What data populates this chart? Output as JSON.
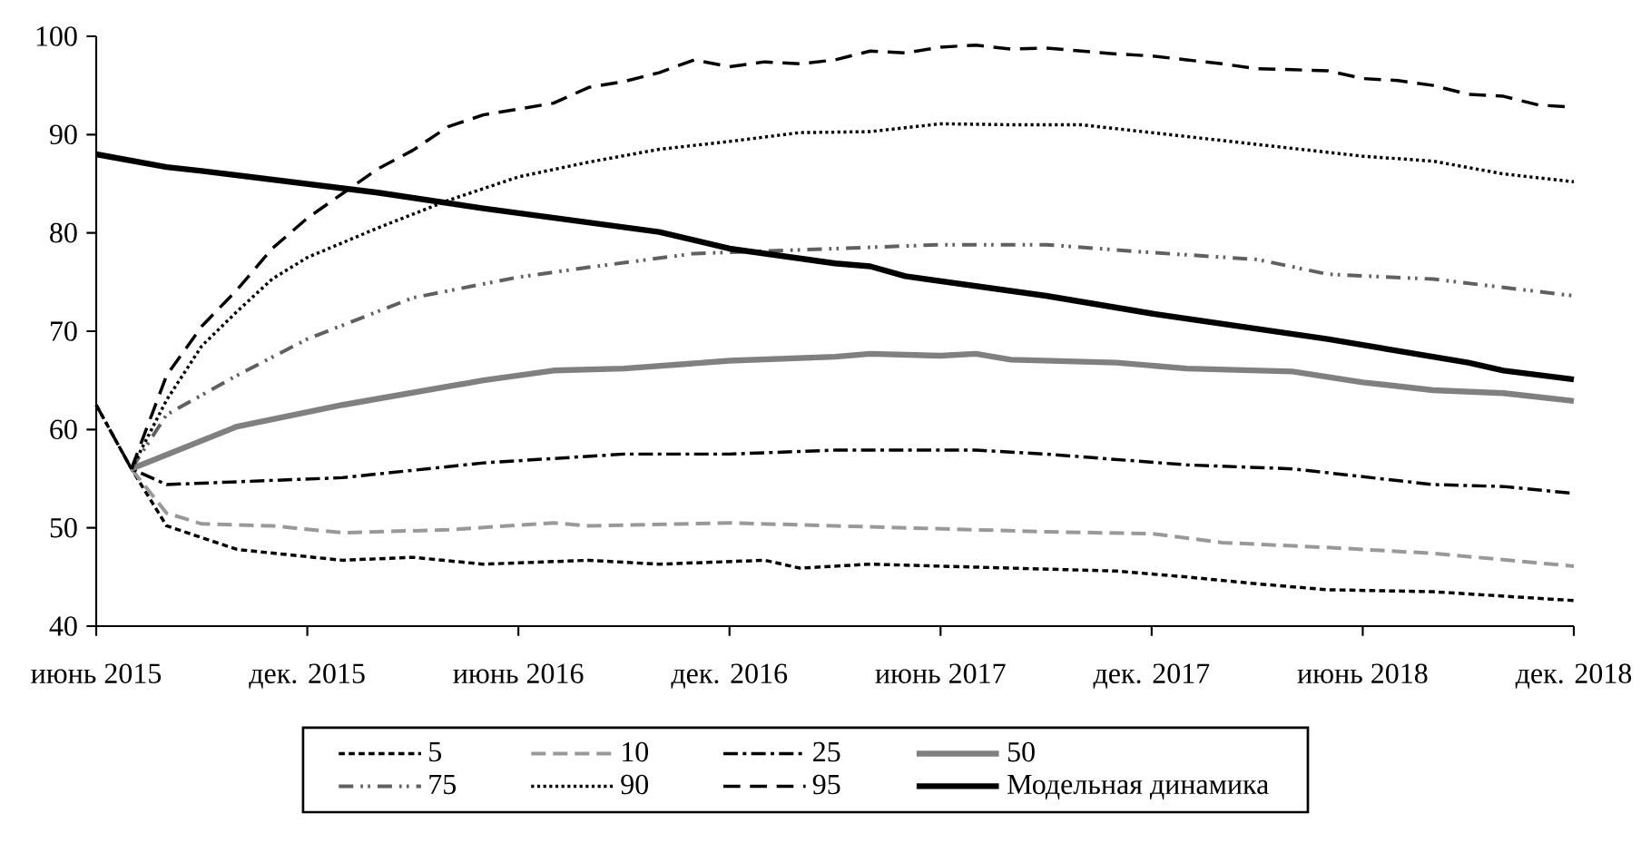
{
  "chart_data": {
    "type": "line",
    "xlim": [
      "2015-06",
      "2018-12"
    ],
    "xticks": [
      {
        "value": "2015-06",
        "label": "июнь 2015"
      },
      {
        "value": "2015-12",
        "label": "дек. 2015"
      },
      {
        "value": "2016-06",
        "label": "июнь 2016"
      },
      {
        "value": "2016-12",
        "label": "дек. 2016"
      },
      {
        "value": "2017-06",
        "label": "июнь 2017"
      },
      {
        "value": "2017-12",
        "label": "дек. 2017"
      },
      {
        "value": "2018-06",
        "label": "июнь 2018"
      },
      {
        "value": "2018-12",
        "label": "дек. 2018"
      }
    ],
    "ylim": [
      40,
      100
    ],
    "yticks": [
      40,
      50,
      60,
      70,
      80,
      90,
      100
    ],
    "grid": false,
    "legend": "bottom",
    "series": [
      {
        "name": "5",
        "color": "#000000",
        "line_style": "densely dashed",
        "x": [
          "2015-06",
          "2015-07",
          "2015-08",
          "2015-10",
          "2016-01",
          "2016-03",
          "2016-05",
          "2016-08",
          "2016-10",
          "2017-01",
          "2017-02",
          "2017-04",
          "2017-08",
          "2017-11",
          "2018-01",
          "2018-03",
          "2018-05",
          "2018-08",
          "2018-12"
        ],
        "values": [
          62.5,
          56,
          50.2,
          47.8,
          46.7,
          47,
          46.3,
          46.7,
          46.3,
          46.7,
          45.9,
          46.3,
          45.9,
          45.6,
          45,
          44.3,
          43.7,
          43.5,
          42.6
        ]
      },
      {
        "name": "10",
        "color": "#999999",
        "line_style": "dashed",
        "x": [
          "2015-07",
          "2015-08",
          "2015-09",
          "2015-11",
          "2016-01",
          "2016-04",
          "2016-07",
          "2016-08",
          "2016-12",
          "2017-03",
          "2017-05",
          "2017-09",
          "2017-12",
          "2018-02",
          "2018-05",
          "2018-08",
          "2018-12"
        ],
        "values": [
          56,
          51.5,
          50.4,
          50.2,
          49.5,
          49.8,
          50.5,
          50.2,
          50.5,
          50.2,
          50,
          49.6,
          49.4,
          48.5,
          48,
          47.4,
          46.1
        ]
      },
      {
        "name": "25",
        "color": "#000000",
        "line_style": "dashdot",
        "x": [
          "2015-06",
          "2015-07",
          "2015-08",
          "2016-01",
          "2016-05",
          "2016-09",
          "2016-12",
          "2017-03",
          "2017-07",
          "2017-09",
          "2018-01",
          "2018-04",
          "2018-08",
          "2018-10",
          "2018-12"
        ],
        "values": [
          62.5,
          56,
          54.4,
          55.1,
          56.6,
          57.5,
          57.5,
          57.9,
          57.9,
          57.5,
          56.4,
          56,
          54.4,
          54.2,
          53.5
        ]
      },
      {
        "name": "50",
        "color": "#808080",
        "line_style": "solid",
        "x": [
          "2015-07",
          "2015-10",
          "2016-01",
          "2016-05",
          "2016-07",
          "2016-09",
          "2016-12",
          "2017-03",
          "2017-04",
          "2017-06",
          "2017-07",
          "2017-08",
          "2017-11",
          "2018-01",
          "2018-04",
          "2018-06",
          "2018-08",
          "2018-10",
          "2018-12"
        ],
        "values": [
          56,
          60.3,
          62.5,
          65,
          66,
          66.2,
          67,
          67.4,
          67.7,
          67.5,
          67.7,
          67.1,
          66.8,
          66.2,
          65.9,
          64.8,
          64,
          63.7,
          62.9
        ]
      },
      {
        "name": "75",
        "color": "#606060",
        "line_style": "dashdotdot",
        "x": [
          "2015-07",
          "2015-08",
          "2015-09",
          "2015-10",
          "2015-12",
          "2016-03",
          "2016-06",
          "2016-08",
          "2016-11",
          "2017-03",
          "2017-06",
          "2017-09",
          "2017-12",
          "2018-03",
          "2018-05",
          "2018-08",
          "2018-12"
        ],
        "values": [
          56,
          61.5,
          63.5,
          65.5,
          69.2,
          73.4,
          75.5,
          76.5,
          77.9,
          78.4,
          78.8,
          78.8,
          78,
          77.3,
          75.8,
          75.3,
          73.6
        ]
      },
      {
        "name": "90",
        "color": "#000000",
        "line_style": "dotted",
        "x": [
          "2015-07",
          "2015-08",
          "2015-09",
          "2015-10",
          "2015-11",
          "2015-12",
          "2016-02",
          "2016-04",
          "2016-06",
          "2016-08",
          "2016-10",
          "2016-12",
          "2017-02",
          "2017-04",
          "2017-06",
          "2017-08",
          "2017-10",
          "2017-12",
          "2018-02",
          "2018-04",
          "2018-06",
          "2018-08",
          "2018-10",
          "2018-12"
        ],
        "values": [
          56,
          63,
          68.5,
          72,
          75.3,
          77.5,
          80.5,
          83.3,
          85.7,
          87.2,
          88.5,
          89.3,
          90.2,
          90.3,
          91.1,
          91,
          91,
          90.2,
          89.4,
          88.6,
          87.8,
          87.3,
          86,
          85.2
        ]
      },
      {
        "name": "95",
        "color": "#000000",
        "line_style": "loosely dashed",
        "x": [
          "2015-07",
          "2015-08",
          "2015-09",
          "2015-10",
          "2015-11",
          "2015-12",
          "2016-01",
          "2016-02",
          "2016-03",
          "2016-04",
          "2016-05",
          "2016-06",
          "2016-07",
          "2016-08",
          "2016-09",
          "2016-10",
          "2016-11",
          "2016-12",
          "2017-01",
          "2017-02",
          "2017-03",
          "2017-04",
          "2017-05",
          "2017-06",
          "2017-07",
          "2017-08",
          "2017-09",
          "2017-10",
          "2017-11",
          "2017-12",
          "2018-01",
          "2018-02",
          "2018-03",
          "2018-04",
          "2018-05",
          "2018-06",
          "2018-07",
          "2018-08",
          "2018-09",
          "2018-10",
          "2018-11",
          "2018-12"
        ],
        "values": [
          56,
          65.5,
          70.5,
          74.2,
          78.4,
          81.5,
          84,
          86.5,
          88.4,
          90.8,
          92,
          92.6,
          93.2,
          94.8,
          95.4,
          96.3,
          97.6,
          96.9,
          97.4,
          97.2,
          97.6,
          98.5,
          98.3,
          98.9,
          99.1,
          98.7,
          98.8,
          98.5,
          98.2,
          98,
          97.6,
          97.2,
          96.7,
          96.6,
          96.5,
          95.7,
          95.5,
          95,
          94.1,
          93.9,
          93,
          92.8
        ]
      },
      {
        "name": "Модельная динамика",
        "color": "#000000",
        "line_style": "solid",
        "x": [
          "2015-06",
          "2015-08",
          "2015-09",
          "2016-02",
          "2016-05",
          "2016-10",
          "2016-12",
          "2017-03",
          "2017-04",
          "2017-05",
          "2017-09",
          "2017-12",
          "2018-05",
          "2018-09",
          "2018-10",
          "2018-12"
        ],
        "values": [
          88,
          86.7,
          86.3,
          84.1,
          82.5,
          80.1,
          78.4,
          76.9,
          76.6,
          75.6,
          73.6,
          71.8,
          69.2,
          66.8,
          66,
          65.1
        ]
      }
    ]
  }
}
